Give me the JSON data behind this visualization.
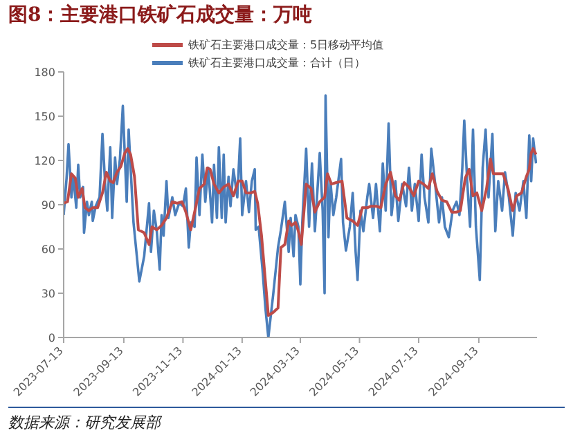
{
  "chart_data": {
    "type": "line",
    "title": "图8：主要港口铁矿石成交量：万吨",
    "annotations": [
      "数据来源：研究发展部"
    ],
    "xlim": [
      "2023-07-13",
      "2024-11-12"
    ],
    "xticks": [
      "2023-07-13",
      "2023-09-13",
      "2023-11-13",
      "2024-01-13",
      "2024-03-13",
      "2024-05-13",
      "2024-07-13",
      "2024-09-13"
    ],
    "ylim": [
      0,
      180
    ],
    "yticks": [
      0,
      30,
      60,
      90,
      120,
      150,
      180
    ],
    "grid": false,
    "legend": "top",
    "marker": "none",
    "line_style": "solid",
    "series": [
      {
        "name": "铁矿石主要港口成交量：合计（日）",
        "color": "#4a7ebb",
        "x": [
          "2023-07-13",
          "2023-07-16",
          "2023-07-18",
          "2023-07-21",
          "2023-07-23",
          "2023-07-26",
          "2023-07-28",
          "2023-07-30",
          "2023-08-02",
          "2023-08-03",
          "2023-08-06",
          "2023-08-08",
          "2023-08-11",
          "2023-08-12",
          "2023-08-15",
          "2023-08-19",
          "2023-08-22",
          "2023-08-25",
          "2023-08-27",
          "2023-08-30",
          "2023-09-01",
          "2023-09-04",
          "2023-09-06",
          "2023-09-09",
          "2023-09-12",
          "2023-09-14",
          "2023-09-16",
          "2023-09-18",
          "2023-09-20",
          "2023-09-23",
          "2023-09-29",
          "2023-10-04",
          "2023-10-09",
          "2023-10-11",
          "2023-10-14",
          "2023-10-17",
          "2023-10-20",
          "2023-10-22",
          "2023-10-24",
          "2023-10-27",
          "2023-10-29",
          "2023-11-02",
          "2023-11-05",
          "2023-11-09",
          "2023-11-13",
          "2023-11-16",
          "2023-11-19",
          "2023-11-21",
          "2023-11-25",
          "2023-11-27",
          "2023-11-30",
          "2023-12-03",
          "2023-12-06",
          "2023-12-09",
          "2023-12-13",
          "2023-12-15",
          "2023-12-18",
          "2023-12-20",
          "2023-12-23",
          "2023-12-25",
          "2023-12-27",
          "2023-12-30",
          "2024-01-01",
          "2024-01-04",
          "2024-01-08",
          "2024-01-11",
          "2024-01-13",
          "2024-01-17",
          "2024-01-20",
          "2024-01-23",
          "2024-01-26",
          "2024-01-27",
          "2024-01-30",
          "2024-02-03",
          "2024-02-06",
          "2024-02-09",
          "2024-02-14",
          "2024-02-19",
          "2024-02-22",
          "2024-02-26",
          "2024-03-01",
          "2024-03-03",
          "2024-03-06",
          "2024-03-08",
          "2024-03-11",
          "2024-03-13",
          "2024-03-15",
          "2024-03-19",
          "2024-03-22",
          "2024-03-25",
          "2024-03-28",
          "2024-04-02",
          "2024-04-05",
          "2024-04-07",
          "2024-04-08",
          "2024-04-11",
          "2024-04-13",
          "2024-04-16",
          "2024-04-19",
          "2024-04-24",
          "2024-04-26",
          "2024-04-29",
          "2024-05-03",
          "2024-05-06",
          "2024-05-09",
          "2024-05-11",
          "2024-05-14",
          "2024-05-17",
          "2024-05-21",
          "2024-05-23",
          "2024-05-27",
          "2024-05-30",
          "2024-06-03",
          "2024-06-06",
          "2024-06-09",
          "2024-06-12",
          "2024-06-15",
          "2024-06-19",
          "2024-06-22",
          "2024-06-26",
          "2024-06-30",
          "2024-07-03",
          "2024-07-06",
          "2024-07-09",
          "2024-07-13",
          "2024-07-16",
          "2024-07-19",
          "2024-07-23",
          "2024-07-26",
          "2024-07-30",
          "2024-08-03",
          "2024-08-06",
          "2024-08-09",
          "2024-08-13",
          "2024-08-17",
          "2024-08-21",
          "2024-08-24",
          "2024-08-27",
          "2024-08-29",
          "2024-09-01",
          "2024-09-04",
          "2024-09-07",
          "2024-09-10",
          "2024-09-14",
          "2024-09-17",
          "2024-09-20",
          "2024-09-23",
          "2024-09-27",
          "2024-09-30",
          "2024-10-03",
          "2024-10-07",
          "2024-10-10",
          "2024-10-14",
          "2024-10-18",
          "2024-10-21",
          "2024-10-25",
          "2024-10-29",
          "2024-11-01",
          "2024-11-04",
          "2024-11-06",
          "2024-11-08",
          "2024-11-11"
        ],
        "values": [
          83,
          108,
          131,
          95,
          109,
          88,
          117,
          95,
          102,
          71,
          92,
          83,
          92,
          79,
          89,
          95,
          138,
          101,
          86,
          129,
          81,
          122,
          104,
          121,
          157,
          124,
          92,
          141,
          115,
          78,
          38,
          55,
          91,
          58,
          86,
          72,
          46,
          83,
          69,
          106,
          81,
          95,
          83,
          91,
          89,
          101,
          61,
          78,
          75,
          122,
          83,
          124,
          92,
          115,
          78,
          117,
          81,
          129,
          81,
          124,
          78,
          109,
          89,
          114,
          95,
          135,
          83,
          106,
          85,
          106,
          114,
          73,
          75,
          46,
          20,
          0,
          29,
          61,
          73,
          92,
          58,
          81,
          55,
          83,
          75,
          36,
          78,
          128,
          75,
          118,
          72,
          125,
          86,
          30,
          164,
          68,
          106,
          83,
          95,
          121,
          78,
          59,
          75,
          98,
          58,
          39,
          86,
          72,
          95,
          104,
          81,
          104,
          72,
          118,
          86,
          145,
          83,
          106,
          79,
          104,
          89,
          115,
          86,
          104,
          79,
          124,
          95,
          78,
          128,
          104,
          78,
          95,
          75,
          68,
          86,
          92,
          83,
          115,
          147,
          106,
          75,
          141,
          75,
          39,
          115,
          141,
          95,
          138,
          72,
          106,
          86,
          112,
          95,
          69,
          98,
          86,
          106,
          81,
          137,
          106,
          135,
          118
        ]
      },
      {
        "name": "铁矿石主要港口成交量：5日移动平均值",
        "color": "#be4b48",
        "x": [
          "2023-07-13",
          "2023-07-17",
          "2023-07-21",
          "2023-07-25",
          "2023-07-28",
          "2023-08-01",
          "2023-08-04",
          "2023-08-08",
          "2023-08-12",
          "2023-08-17",
          "2023-08-22",
          "2023-08-26",
          "2023-08-30",
          "2023-09-02",
          "2023-09-06",
          "2023-09-10",
          "2023-09-14",
          "2023-09-17",
          "2023-09-20",
          "2023-09-24",
          "2023-09-28",
          "2023-10-04",
          "2023-10-09",
          "2023-10-12",
          "2023-10-17",
          "2023-10-22",
          "2023-10-27",
          "2023-11-02",
          "2023-11-07",
          "2023-11-12",
          "2023-11-16",
          "2023-11-21",
          "2023-11-26",
          "2023-11-30",
          "2023-12-05",
          "2023-12-08",
          "2023-12-11",
          "2023-12-15",
          "2023-12-20",
          "2023-12-25",
          "2023-12-30",
          "2024-01-04",
          "2024-01-09",
          "2024-01-13",
          "2024-01-17",
          "2024-01-22",
          "2024-01-26",
          "2024-01-29",
          "2024-02-02",
          "2024-02-06",
          "2024-02-09",
          "2024-02-14",
          "2024-02-19",
          "2024-02-22",
          "2024-02-26",
          "2024-03-01",
          "2024-03-04",
          "2024-03-08",
          "2024-03-11",
          "2024-03-14",
          "2024-03-19",
          "2024-03-24",
          "2024-03-28",
          "2024-04-02",
          "2024-04-07",
          "2024-04-10",
          "2024-04-14",
          "2024-04-19",
          "2024-04-25",
          "2024-04-30",
          "2024-05-06",
          "2024-05-11",
          "2024-05-16",
          "2024-05-21",
          "2024-05-25",
          "2024-05-30",
          "2024-06-04",
          "2024-06-09",
          "2024-06-14",
          "2024-06-19",
          "2024-06-23",
          "2024-06-28",
          "2024-07-03",
          "2024-07-08",
          "2024-07-13",
          "2024-07-18",
          "2024-07-23",
          "2024-07-27",
          "2024-08-01",
          "2024-08-06",
          "2024-08-11",
          "2024-08-16",
          "2024-08-21",
          "2024-08-25",
          "2024-08-30",
          "2024-09-03",
          "2024-09-07",
          "2024-09-11",
          "2024-09-16",
          "2024-09-21",
          "2024-09-25",
          "2024-09-28",
          "2024-10-03",
          "2024-10-08",
          "2024-10-13",
          "2024-10-18",
          "2024-10-22",
          "2024-10-27",
          "2024-11-01",
          "2024-11-04",
          "2024-11-06",
          "2024-11-08",
          "2024-11-11"
        ],
        "values": [
          91,
          92,
          111,
          108,
          95,
          101,
          88,
          86,
          88,
          88,
          98,
          112,
          106,
          105,
          112,
          116,
          125,
          128,
          124,
          109,
          73,
          71,
          63,
          75,
          73,
          76,
          81,
          92,
          91,
          92,
          85,
          73,
          88,
          101,
          104,
          115,
          114,
          104,
          98,
          102,
          104,
          96,
          106,
          106,
          98,
          98,
          99,
          91,
          69,
          38,
          15,
          17,
          20,
          61,
          63,
          79,
          76,
          78,
          72,
          63,
          104,
          101,
          85,
          92,
          95,
          111,
          104,
          105,
          106,
          81,
          79,
          76,
          88,
          88,
          89,
          89,
          88,
          104,
          112,
          96,
          93,
          105,
          102,
          96,
          106,
          104,
          101,
          111,
          99,
          93,
          92,
          85,
          85,
          86,
          108,
          114,
          96,
          98,
          86,
          101,
          121,
          111,
          111,
          111,
          101,
          86,
          96,
          98,
          109,
          114,
          125,
          128,
          124
        ]
      }
    ]
  }
}
